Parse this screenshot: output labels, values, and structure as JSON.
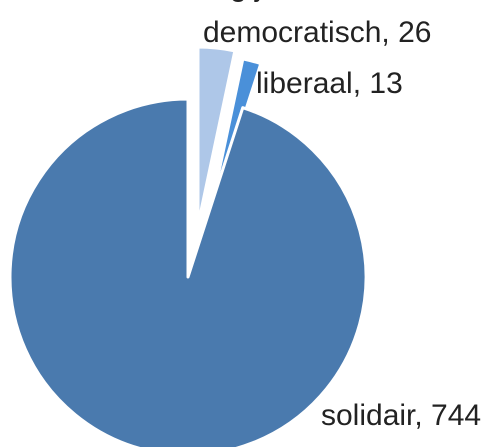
{
  "chart_data": {
    "type": "pie",
    "title_fragment": "g                                  j",
    "slices": [
      {
        "label": "democratisch",
        "value": 26,
        "color": "#aec7e8"
      },
      {
        "label": "liberaal",
        "value": 13,
        "color": "#4a90d9"
      },
      {
        "label": "solidair",
        "value": 744,
        "color": "#4a7aae"
      }
    ],
    "data_labels": [
      "democratisch, 26",
      "liberaal, 13",
      "solidair, 744"
    ],
    "legend": false,
    "grid": false
  }
}
